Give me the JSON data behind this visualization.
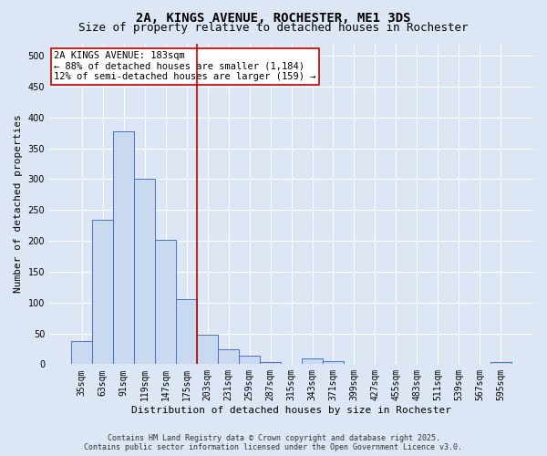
{
  "title": "2A, KINGS AVENUE, ROCHESTER, ME1 3DS",
  "subtitle": "Size of property relative to detached houses in Rochester",
  "xlabel": "Distribution of detached houses by size in Rochester",
  "ylabel": "Number of detached properties",
  "categories": [
    "35sqm",
    "63sqm",
    "91sqm",
    "119sqm",
    "147sqm",
    "175sqm",
    "203sqm",
    "231sqm",
    "259sqm",
    "287sqm",
    "315sqm",
    "343sqm",
    "371sqm",
    "399sqm",
    "427sqm",
    "455sqm",
    "483sqm",
    "511sqm",
    "539sqm",
    "567sqm",
    "595sqm"
  ],
  "values": [
    37,
    234,
    378,
    301,
    201,
    106,
    48,
    24,
    14,
    4,
    1,
    10,
    5,
    1,
    0,
    1,
    0,
    0,
    0,
    0,
    4
  ],
  "bar_color": "#c9daf0",
  "bar_edge_color": "#4472c4",
  "vline_x_index": 5,
  "vline_color": "#c00000",
  "annotation_text": "2A KINGS AVENUE: 183sqm\n← 88% of detached houses are smaller (1,184)\n12% of semi-detached houses are larger (159) →",
  "annotation_box_color": "#ffffff",
  "annotation_box_edge": "#c00000",
  "ylim": [
    0,
    520
  ],
  "yticks": [
    0,
    50,
    100,
    150,
    200,
    250,
    300,
    350,
    400,
    450,
    500
  ],
  "footer_line1": "Contains HM Land Registry data © Crown copyright and database right 2025.",
  "footer_line2": "Contains public sector information licensed under the Open Government Licence v3.0.",
  "background_color": "#dce6f5",
  "plot_bg_color": "#dce6f5",
  "grid_color": "#ffffff",
  "title_fontsize": 10,
  "subtitle_fontsize": 9,
  "axis_label_fontsize": 8,
  "tick_fontsize": 7,
  "annotation_fontsize": 7.5,
  "footer_fontsize": 6
}
